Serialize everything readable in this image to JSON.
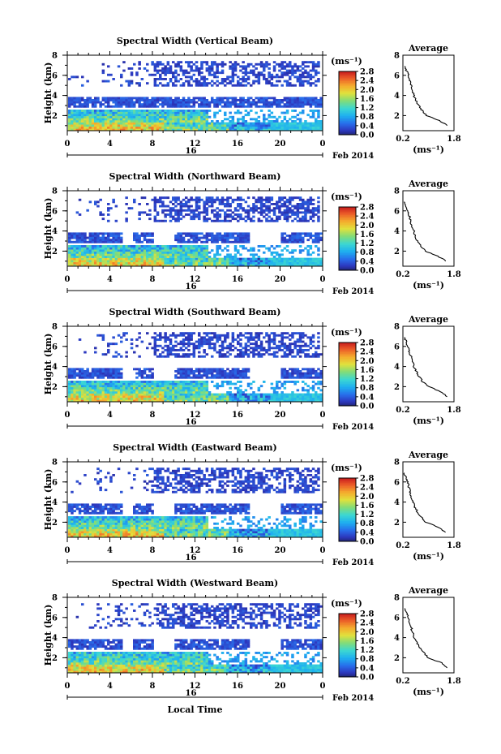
{
  "figure": {
    "xlabel": "Local Time",
    "date_under_axis": "16",
    "month_label": "Feb 2014",
    "colorbar_unit": "(ms⁻¹)",
    "colorbar_ticks": [
      "0.0",
      "0.4",
      "0.8",
      "1.2",
      "1.6",
      "2.0",
      "2.4",
      "2.8"
    ],
    "profile_title": "Average",
    "profile_xlabel": "(ms⁻¹)",
    "profile_xticks": [
      "0.2",
      "1.8"
    ],
    "profile_yticks": [
      "2",
      "4",
      "6",
      "8"
    ]
  },
  "chart_data": [
    {
      "type": "heatmap",
      "title": "Spectral Width (Vertical Beam)",
      "xlabel": "Local Time",
      "ylabel": "Height (km)",
      "x_ticks": [
        "0",
        "4",
        "8",
        "12",
        "16",
        "20",
        "0"
      ],
      "y_ticks": [
        "2",
        "4",
        "6",
        "8"
      ],
      "xlim": [
        0,
        24
      ],
      "ylim": [
        0.5,
        8
      ],
      "colorbar": {
        "label": "(ms⁻¹)",
        "range": [
          0.0,
          2.8
        ],
        "ticks": [
          "0.0",
          "0.4",
          "0.8",
          "1.2",
          "1.6",
          "2.0",
          "2.4",
          "2.8"
        ]
      },
      "profile": {
        "title": "Average",
        "xlabel": "(ms⁻¹)",
        "x_ticks": [
          "0.2",
          "1.8"
        ],
        "y_ticks": [
          "2",
          "4",
          "6",
          "8"
        ],
        "height_km": [
          1.0,
          1.5,
          2.0,
          2.5,
          3.0,
          3.5,
          4.0,
          4.5,
          5.0,
          5.5,
          6.0,
          6.5,
          7.0
        ],
        "avg_width": [
          1.6,
          1.35,
          0.95,
          0.8,
          0.7,
          0.6,
          0.55,
          0.5,
          0.45,
          0.42,
          0.38,
          0.3,
          0.22
        ]
      }
    },
    {
      "type": "heatmap",
      "title": "Spectral Width (Northward Beam)",
      "xlabel": "Local Time",
      "ylabel": "Height (km)",
      "x_ticks": [
        "0",
        "4",
        "8",
        "12",
        "16",
        "20",
        "0"
      ],
      "y_ticks": [
        "2",
        "4",
        "6",
        "8"
      ],
      "xlim": [
        0,
        24
      ],
      "ylim": [
        0.5,
        8
      ],
      "colorbar": {
        "label": "(ms⁻¹)",
        "range": [
          0.0,
          2.8
        ],
        "ticks": [
          "0.0",
          "0.4",
          "0.8",
          "1.2",
          "1.6",
          "2.0",
          "2.4",
          "2.8"
        ]
      },
      "profile": {
        "title": "Average",
        "xlabel": "(ms⁻¹)",
        "x_ticks": [
          "0.2",
          "1.8"
        ],
        "y_ticks": [
          "2",
          "4",
          "6",
          "8"
        ],
        "height_km": [
          1.0,
          1.5,
          2.0,
          2.5,
          3.0,
          3.5,
          4.0,
          4.5,
          5.0,
          5.5,
          6.0,
          6.5,
          7.0
        ],
        "avg_width": [
          1.55,
          1.3,
          0.9,
          0.75,
          0.65,
          0.58,
          0.55,
          0.48,
          0.43,
          0.4,
          0.35,
          0.3,
          0.22
        ]
      }
    },
    {
      "type": "heatmap",
      "title": "Spectral Width (Southward Beam)",
      "xlabel": "Local Time",
      "ylabel": "Height (km)",
      "x_ticks": [
        "0",
        "4",
        "8",
        "12",
        "16",
        "20",
        "0"
      ],
      "y_ticks": [
        "2",
        "4",
        "6",
        "8"
      ],
      "xlim": [
        0,
        24
      ],
      "ylim": [
        0.5,
        8
      ],
      "colorbar": {
        "label": "(ms⁻¹)",
        "range": [
          0.0,
          2.8
        ],
        "ticks": [
          "0.0",
          "0.4",
          "0.8",
          "1.2",
          "1.6",
          "2.0",
          "2.4",
          "2.8"
        ]
      },
      "profile": {
        "title": "Average",
        "xlabel": "(ms⁻¹)",
        "x_ticks": [
          "0.2",
          "1.8"
        ],
        "y_ticks": [
          "2",
          "4",
          "6",
          "8"
        ],
        "height_km": [
          1.0,
          1.5,
          2.0,
          2.5,
          3.0,
          3.5,
          4.0,
          4.5,
          5.0,
          5.5,
          6.0,
          6.5,
          7.0
        ],
        "avg_width": [
          1.6,
          1.4,
          1.0,
          0.82,
          0.7,
          0.62,
          0.55,
          0.5,
          0.45,
          0.4,
          0.36,
          0.3,
          0.22
        ]
      }
    },
    {
      "type": "heatmap",
      "title": "Spectral Width (Eastward Beam)",
      "xlabel": "Local Time",
      "ylabel": "Height (km)",
      "x_ticks": [
        "0",
        "4",
        "8",
        "12",
        "16",
        "20",
        "0"
      ],
      "y_ticks": [
        "2",
        "4",
        "6",
        "8"
      ],
      "xlim": [
        0,
        24
      ],
      "ylim": [
        0.5,
        8
      ],
      "colorbar": {
        "label": "(ms⁻¹)",
        "range": [
          0.0,
          2.8
        ],
        "ticks": [
          "0.0",
          "0.4",
          "0.8",
          "1.2",
          "1.6",
          "2.0",
          "2.4",
          "2.8"
        ]
      },
      "profile": {
        "title": "Average",
        "xlabel": "(ms⁻¹)",
        "x_ticks": [
          "0.2",
          "1.8"
        ],
        "y_ticks": [
          "2",
          "4",
          "6",
          "8"
        ],
        "height_km": [
          1.0,
          1.5,
          2.0,
          2.5,
          3.0,
          3.5,
          4.0,
          4.5,
          5.0,
          5.5,
          6.0,
          6.5,
          7.0
        ],
        "avg_width": [
          1.55,
          1.3,
          0.92,
          0.78,
          0.66,
          0.58,
          0.52,
          0.46,
          0.42,
          0.38,
          0.34,
          0.3,
          0.22
        ]
      }
    },
    {
      "type": "heatmap",
      "title": "Spectral Width (Westward Beam)",
      "xlabel": "Local Time",
      "ylabel": "Height (km)",
      "x_ticks": [
        "0",
        "4",
        "8",
        "12",
        "16",
        "20",
        "0"
      ],
      "y_ticks": [
        "2",
        "4",
        "6",
        "8"
      ],
      "xlim": [
        0,
        24
      ],
      "ylim": [
        0.5,
        8
      ],
      "colorbar": {
        "label": "(ms⁻¹)",
        "range": [
          0.0,
          2.8
        ],
        "ticks": [
          "0.0",
          "0.4",
          "0.8",
          "1.2",
          "1.6",
          "2.0",
          "2.4",
          "2.8"
        ]
      },
      "profile": {
        "title": "Average",
        "xlabel": "(ms⁻¹)",
        "x_ticks": [
          "0.2",
          "1.8"
        ],
        "y_ticks": [
          "2",
          "4",
          "6",
          "8"
        ],
        "height_km": [
          1.0,
          1.5,
          2.0,
          2.5,
          3.0,
          3.5,
          4.0,
          4.5,
          5.0,
          5.5,
          6.0,
          6.5,
          7.0
        ],
        "avg_width": [
          1.6,
          1.4,
          1.0,
          0.85,
          0.72,
          0.64,
          0.56,
          0.5,
          0.46,
          0.42,
          0.38,
          0.3,
          0.22
        ]
      }
    }
  ]
}
